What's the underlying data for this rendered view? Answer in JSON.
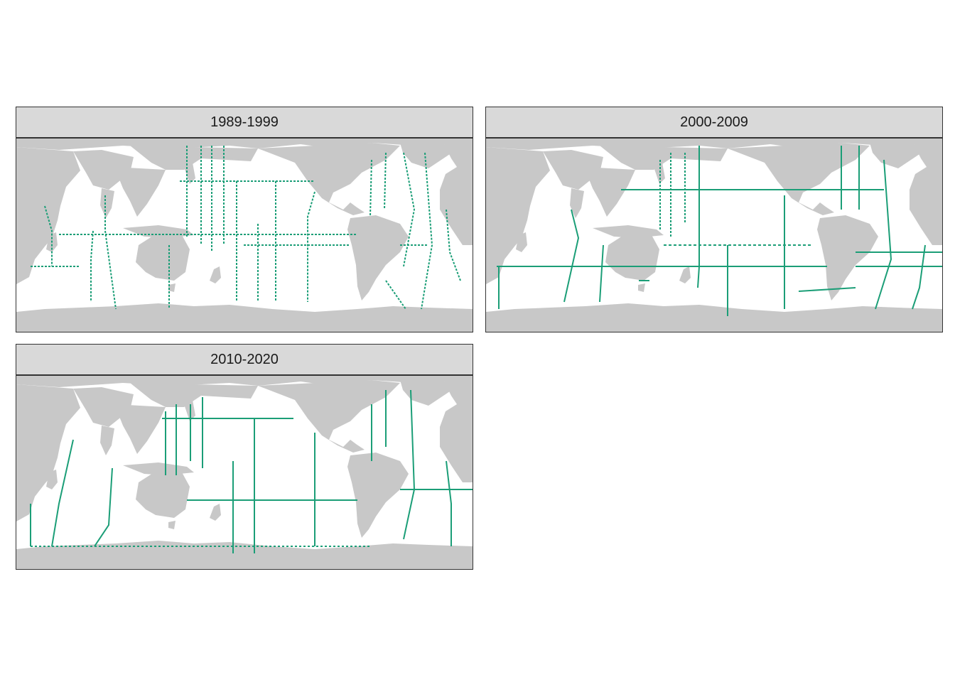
{
  "colors": {
    "land": "#c8c8c8",
    "ocean": "#ffffff",
    "track": "#1b9e77",
    "strip": "#d9d9d9",
    "border": "#333333"
  },
  "panels": [
    {
      "title": "1989-1999"
    },
    {
      "title": "2000-2009"
    },
    {
      "title": "2010-2020"
    }
  ]
}
